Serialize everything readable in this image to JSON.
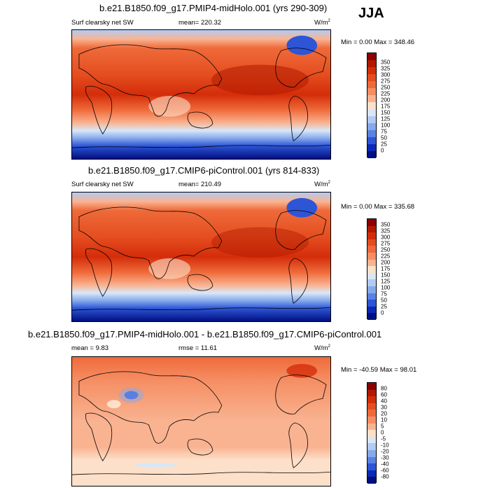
{
  "season": "JJA",
  "units_base": "W/m",
  "units_exp": "2",
  "panels": [
    {
      "title": "b.e21.B1850.f09_g17.PMIP4-midHolo.001 (yrs 290-309)",
      "left_label": "Surf clearsky net SW",
      "stat_label": "mean= 220.32",
      "min": "0.00",
      "max": "348.46",
      "minmax": "Min =   0.00 Max = 348.46",
      "ticks": [
        "350",
        "325",
        "300",
        "275",
        "250",
        "225",
        "200",
        "175",
        "150",
        "125",
        "100",
        "75",
        "50",
        "25",
        "0"
      ]
    },
    {
      "title": "b.e21.B1850.f09_g17.CMIP6-piControl.001 (yrs 814-833)",
      "left_label": "Surf clearsky net SW",
      "stat_label": "mean= 210.49",
      "min": "0.00",
      "max": "335.68",
      "minmax": "Min =   0.00 Max = 335.68",
      "ticks": [
        "350",
        "325",
        "300",
        "275",
        "250",
        "225",
        "200",
        "175",
        "150",
        "125",
        "100",
        "75",
        "50",
        "25",
        "0"
      ]
    },
    {
      "title": "b.e21.B1850.f09_g17.PMIP4-midHolo.001 - b.e21.B1850.f09_g17.CMIP6-piControl.001",
      "left_label": "mean =   9.83",
      "stat_label": "rmse =  11.61",
      "min": "-40.59",
      "max": "98.01",
      "minmax": "Min = -40.59 Max =  98.01",
      "ticks": [
        "80",
        "60",
        "40",
        "30",
        "20",
        "10",
        "5",
        "0",
        "-5",
        "-10",
        "-20",
        "-30",
        "-40",
        "-60",
        "-80"
      ]
    }
  ],
  "colors": {
    "abs_scale": [
      "#8b0000",
      "#b21a00",
      "#d42d0a",
      "#e44d1f",
      "#ef6a3a",
      "#f58e63",
      "#f9b391",
      "#fde0c9",
      "#d8e7f8",
      "#b3cbf2",
      "#86a9ec",
      "#5a82e4",
      "#2d55d6",
      "#0b29b8",
      "#000f80"
    ],
    "diff_scale": [
      "#8b0000",
      "#b21a00",
      "#d42d0a",
      "#e44d1f",
      "#ef6a3a",
      "#f58e63",
      "#f9b391",
      "#fde0c9",
      "#d8e7f8",
      "#b3cbf2",
      "#86a9ec",
      "#5a82e4",
      "#2d55d6",
      "#0b29b8",
      "#000f80"
    ]
  }
}
